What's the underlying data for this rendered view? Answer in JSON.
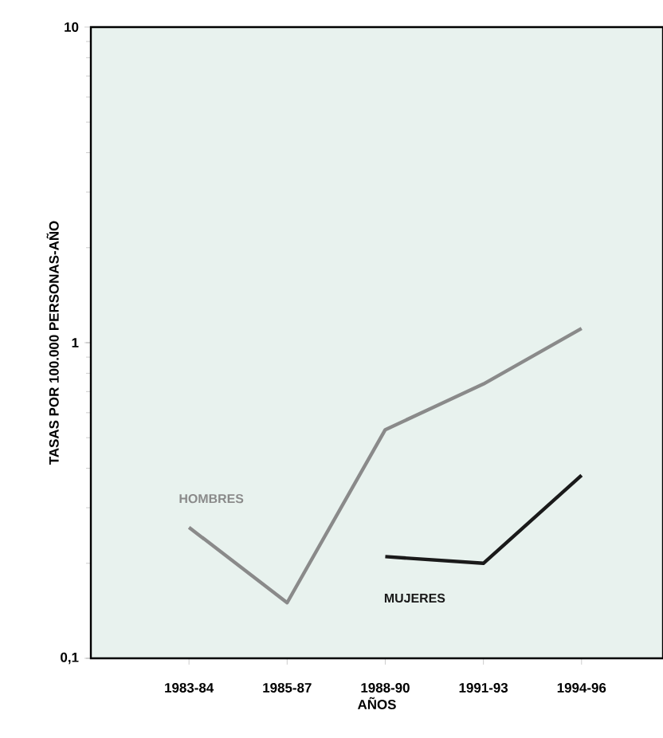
{
  "chart_data": {
    "type": "line",
    "xlabel": "AÑOS",
    "ylabel": "TASAS POR 100.000 PERSONAS-AÑO",
    "categories": [
      "1983-84",
      "1985-87",
      "1988-90",
      "1991-93",
      "1994-96"
    ],
    "series": [
      {
        "name": "HOMBRES",
        "color": "#8a8a8a",
        "values": [
          0.26,
          0.15,
          0.53,
          0.74,
          1.11
        ]
      },
      {
        "name": "MUJERES",
        "color": "#1a1a1a",
        "values": [
          null,
          null,
          0.21,
          0.2,
          0.38
        ]
      }
    ],
    "log": "y",
    "ylim": [
      0.1,
      10
    ],
    "yticks": [
      {
        "value": 0.1,
        "label": "0,1"
      },
      1,
      10
    ],
    "grid": false,
    "marker": "none",
    "line_style": "solid"
  }
}
